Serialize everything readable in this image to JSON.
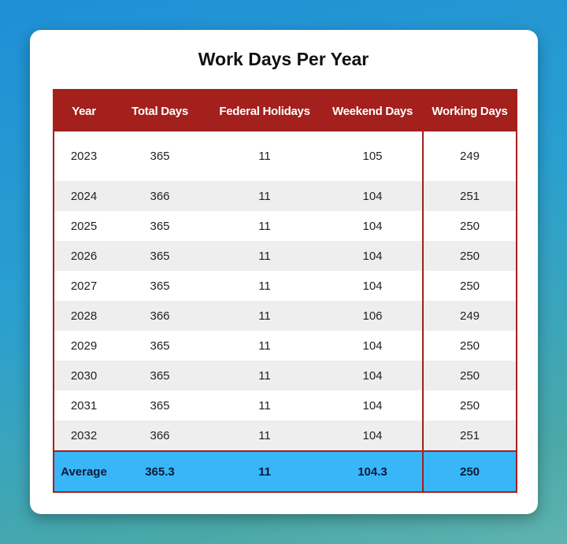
{
  "title": "Work Days Per Year",
  "columns": [
    "Year",
    "Total Days",
    "Federal Holidays",
    "Weekend Days",
    "Working Days"
  ],
  "rows": [
    [
      "2023",
      "365",
      "11",
      "105",
      "249"
    ],
    [
      "2024",
      "366",
      "11",
      "104",
      "251"
    ],
    [
      "2025",
      "365",
      "11",
      "104",
      "250"
    ],
    [
      "2026",
      "365",
      "11",
      "104",
      "250"
    ],
    [
      "2027",
      "365",
      "11",
      "104",
      "250"
    ],
    [
      "2028",
      "366",
      "11",
      "106",
      "249"
    ],
    [
      "2029",
      "365",
      "11",
      "104",
      "250"
    ],
    [
      "2030",
      "365",
      "11",
      "104",
      "250"
    ],
    [
      "2031",
      "365",
      "11",
      "104",
      "250"
    ],
    [
      "2032",
      "366",
      "11",
      "104",
      "251"
    ]
  ],
  "average": [
    "Average",
    "365.3",
    "11",
    "104.3",
    "250"
  ],
  "colors": {
    "header": "#a3201c",
    "average_row": "#38b6f7",
    "stripe": "#eeeeee"
  }
}
